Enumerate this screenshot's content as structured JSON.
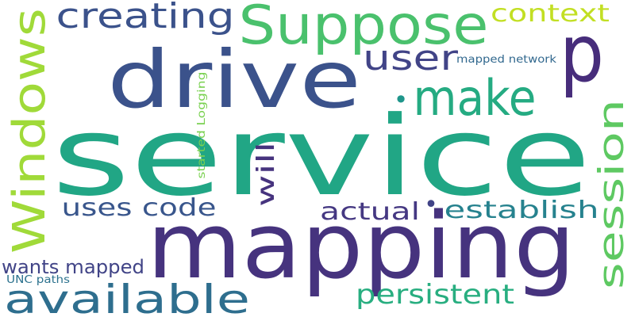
{
  "words": [
    {
      "text": "service",
      "color": "#21a685"
    },
    {
      "text": "mapping",
      "color": "#46337e"
    },
    {
      "text": "drive",
      "color": "#3b528b"
    },
    {
      "text": "Suppose",
      "color": "#4ac16d"
    },
    {
      "text": "p",
      "color": "#472d7b"
    },
    {
      "text": "make",
      "color": "#25ab82"
    },
    {
      "text": "Windows",
      "color": "#a0da39"
    },
    {
      "text": "available",
      "color": "#2e6e8e"
    },
    {
      "text": "creating",
      "color": "#3b528b"
    },
    {
      "text": "user",
      "color": "#414487"
    },
    {
      "text": "session",
      "color": "#5ec962"
    },
    {
      "text": "context",
      "color": "#c2df23"
    },
    {
      "text": "persistent",
      "color": "#28ae80"
    },
    {
      "text": "establish",
      "color": "#26828e"
    },
    {
      "text": "actual",
      "color": "#453882"
    },
    {
      "text": "uses code",
      "color": "#39568c"
    },
    {
      "text": "will",
      "color": "#46337e"
    },
    {
      "text": "wants mapped",
      "color": "#414487"
    },
    {
      "text": "UNC paths",
      "color": "#2c728e"
    },
    {
      "text": "started Logging",
      "color": "#7ad151"
    },
    {
      "text": "mapped network",
      "color": "#31688e"
    },
    {
      "text": "•",
      "color": "#1f968b"
    },
    {
      "text": "•",
      "color": "#414487"
    }
  ]
}
